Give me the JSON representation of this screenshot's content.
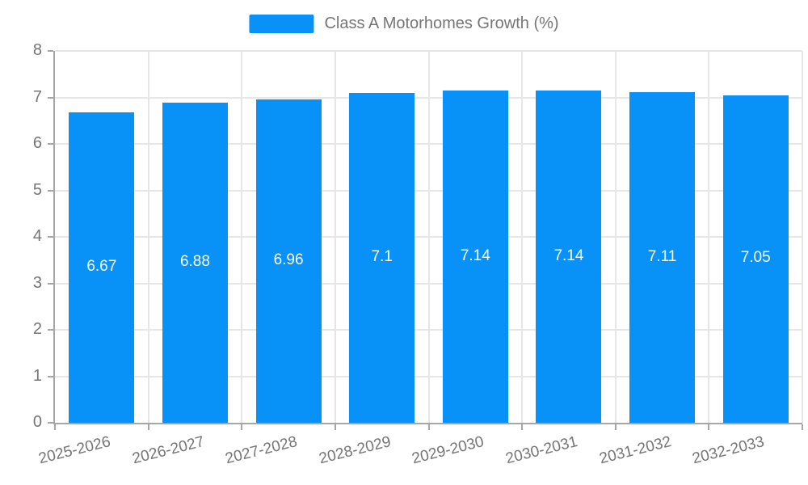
{
  "legend": {
    "label": "Class A Motorhomes Growth (%)",
    "swatch_color": "#0892f8"
  },
  "chart_data": {
    "type": "bar",
    "title": "Class A Motorhomes Growth (%)",
    "categories": [
      "2025-2026",
      "2026-2027",
      "2027-2028",
      "2028-2029",
      "2029-2030",
      "2030-2031",
      "2031-2032",
      "2032-2033"
    ],
    "values": [
      6.67,
      6.88,
      6.96,
      7.1,
      7.14,
      7.14,
      7.11,
      7.05
    ],
    "value_labels": [
      "6.67",
      "6.88",
      "6.96",
      "7.1",
      "7.14",
      "7.14",
      "7.11",
      "7.05"
    ],
    "xlabel": "",
    "ylabel": "",
    "ylim": [
      0,
      8
    ],
    "yticks": [
      0,
      1,
      2,
      3,
      4,
      5,
      6,
      7,
      8
    ],
    "grid": true,
    "legend_position": "top-center",
    "bar_color": "#0892f8",
    "colors": {
      "grid": "#e6e6e6",
      "axis": "#a6a6a6",
      "tick_label": "#757575",
      "value_label": "#ffffff",
      "background": "#ffffff"
    }
  }
}
